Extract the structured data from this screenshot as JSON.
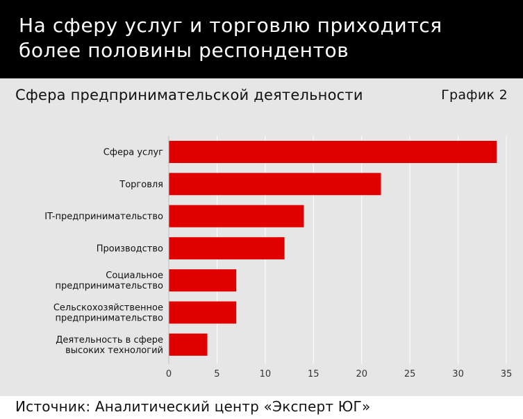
{
  "header": {
    "title": "На сферу услуг и торговлю приходится\nболее половины респондентов"
  },
  "subtitle": "Сфера предпринимательской деятельности",
  "graph_label": "График 2",
  "footer": {
    "source": "Источник: Аналитический центр «Эксперт ЮГ»"
  },
  "colors": {
    "bar": "#e00000",
    "header_bg": "#000000",
    "background": "#e6e6e6",
    "grid": "#ffffff"
  },
  "chart_data": {
    "type": "bar",
    "orientation": "horizontal",
    "categories": [
      "Сфера услуг",
      "Торговля",
      "IT-предпринимательство",
      "Производство",
      "Социальное предпринимательство",
      "Сельскохозяйственное предпринимательство",
      "Деятельность в сфере высоких технологий"
    ],
    "category_lines": [
      [
        "Сфера услуг"
      ],
      [
        "Торговля"
      ],
      [
        "IT-предпринимательство"
      ],
      [
        "Производство"
      ],
      [
        "Социальное",
        "предпринимательство"
      ],
      [
        "Сельскохозяйственное",
        "предпринимательство"
      ],
      [
        "Деятельность в сфере",
        "высоких технологий"
      ]
    ],
    "values": [
      34,
      22,
      14,
      12,
      7,
      7,
      4
    ],
    "xlim": [
      0,
      35
    ],
    "xticks": [
      0,
      5,
      10,
      15,
      20,
      25,
      30,
      35
    ],
    "grid": true
  }
}
